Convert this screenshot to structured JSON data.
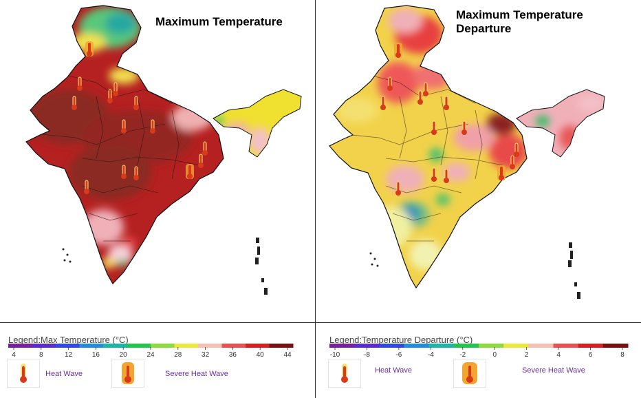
{
  "left_map": {
    "title": "Maximum Temperature",
    "legend": {
      "title": "Legend:Max Temperature (°C)",
      "ticks": [
        "4",
        "8",
        "12",
        "16",
        "20",
        "24",
        "28",
        "32",
        "36",
        "40",
        "44"
      ],
      "colors": [
        "#7a1fa2",
        "#5b2bd0",
        "#2f49e6",
        "#1e8fdf",
        "#17b8a8",
        "#1fc84a",
        "#8ade3a",
        "#f0e634",
        "#f7c0b0",
        "#ec5050",
        "#d81e1e",
        "#7a0f0f"
      ]
    },
    "keys": {
      "heat_wave": "Heat Wave",
      "severe_heat_wave": "Severe Heat Wave"
    }
  },
  "right_map": {
    "title": "Maximum Temperature Departure",
    "legend": {
      "title": "Legend:Temperature Departure (°C)",
      "ticks": [
        "-10",
        "-8",
        "-6",
        "-4",
        "-2",
        "0",
        "2",
        "4",
        "6",
        "8"
      ],
      "colors": [
        "#7a1fa2",
        "#5b2bd0",
        "#2f49e6",
        "#1e8fdf",
        "#17b8a8",
        "#1fc84a",
        "#8ade3a",
        "#f0e634",
        "#f7c0b0",
        "#ec5050",
        "#d81e1e",
        "#7a0f0f"
      ]
    },
    "keys": {
      "heat_wave": "Heat Wave",
      "severe_heat_wave": "Severe Heat Wave"
    }
  }
}
